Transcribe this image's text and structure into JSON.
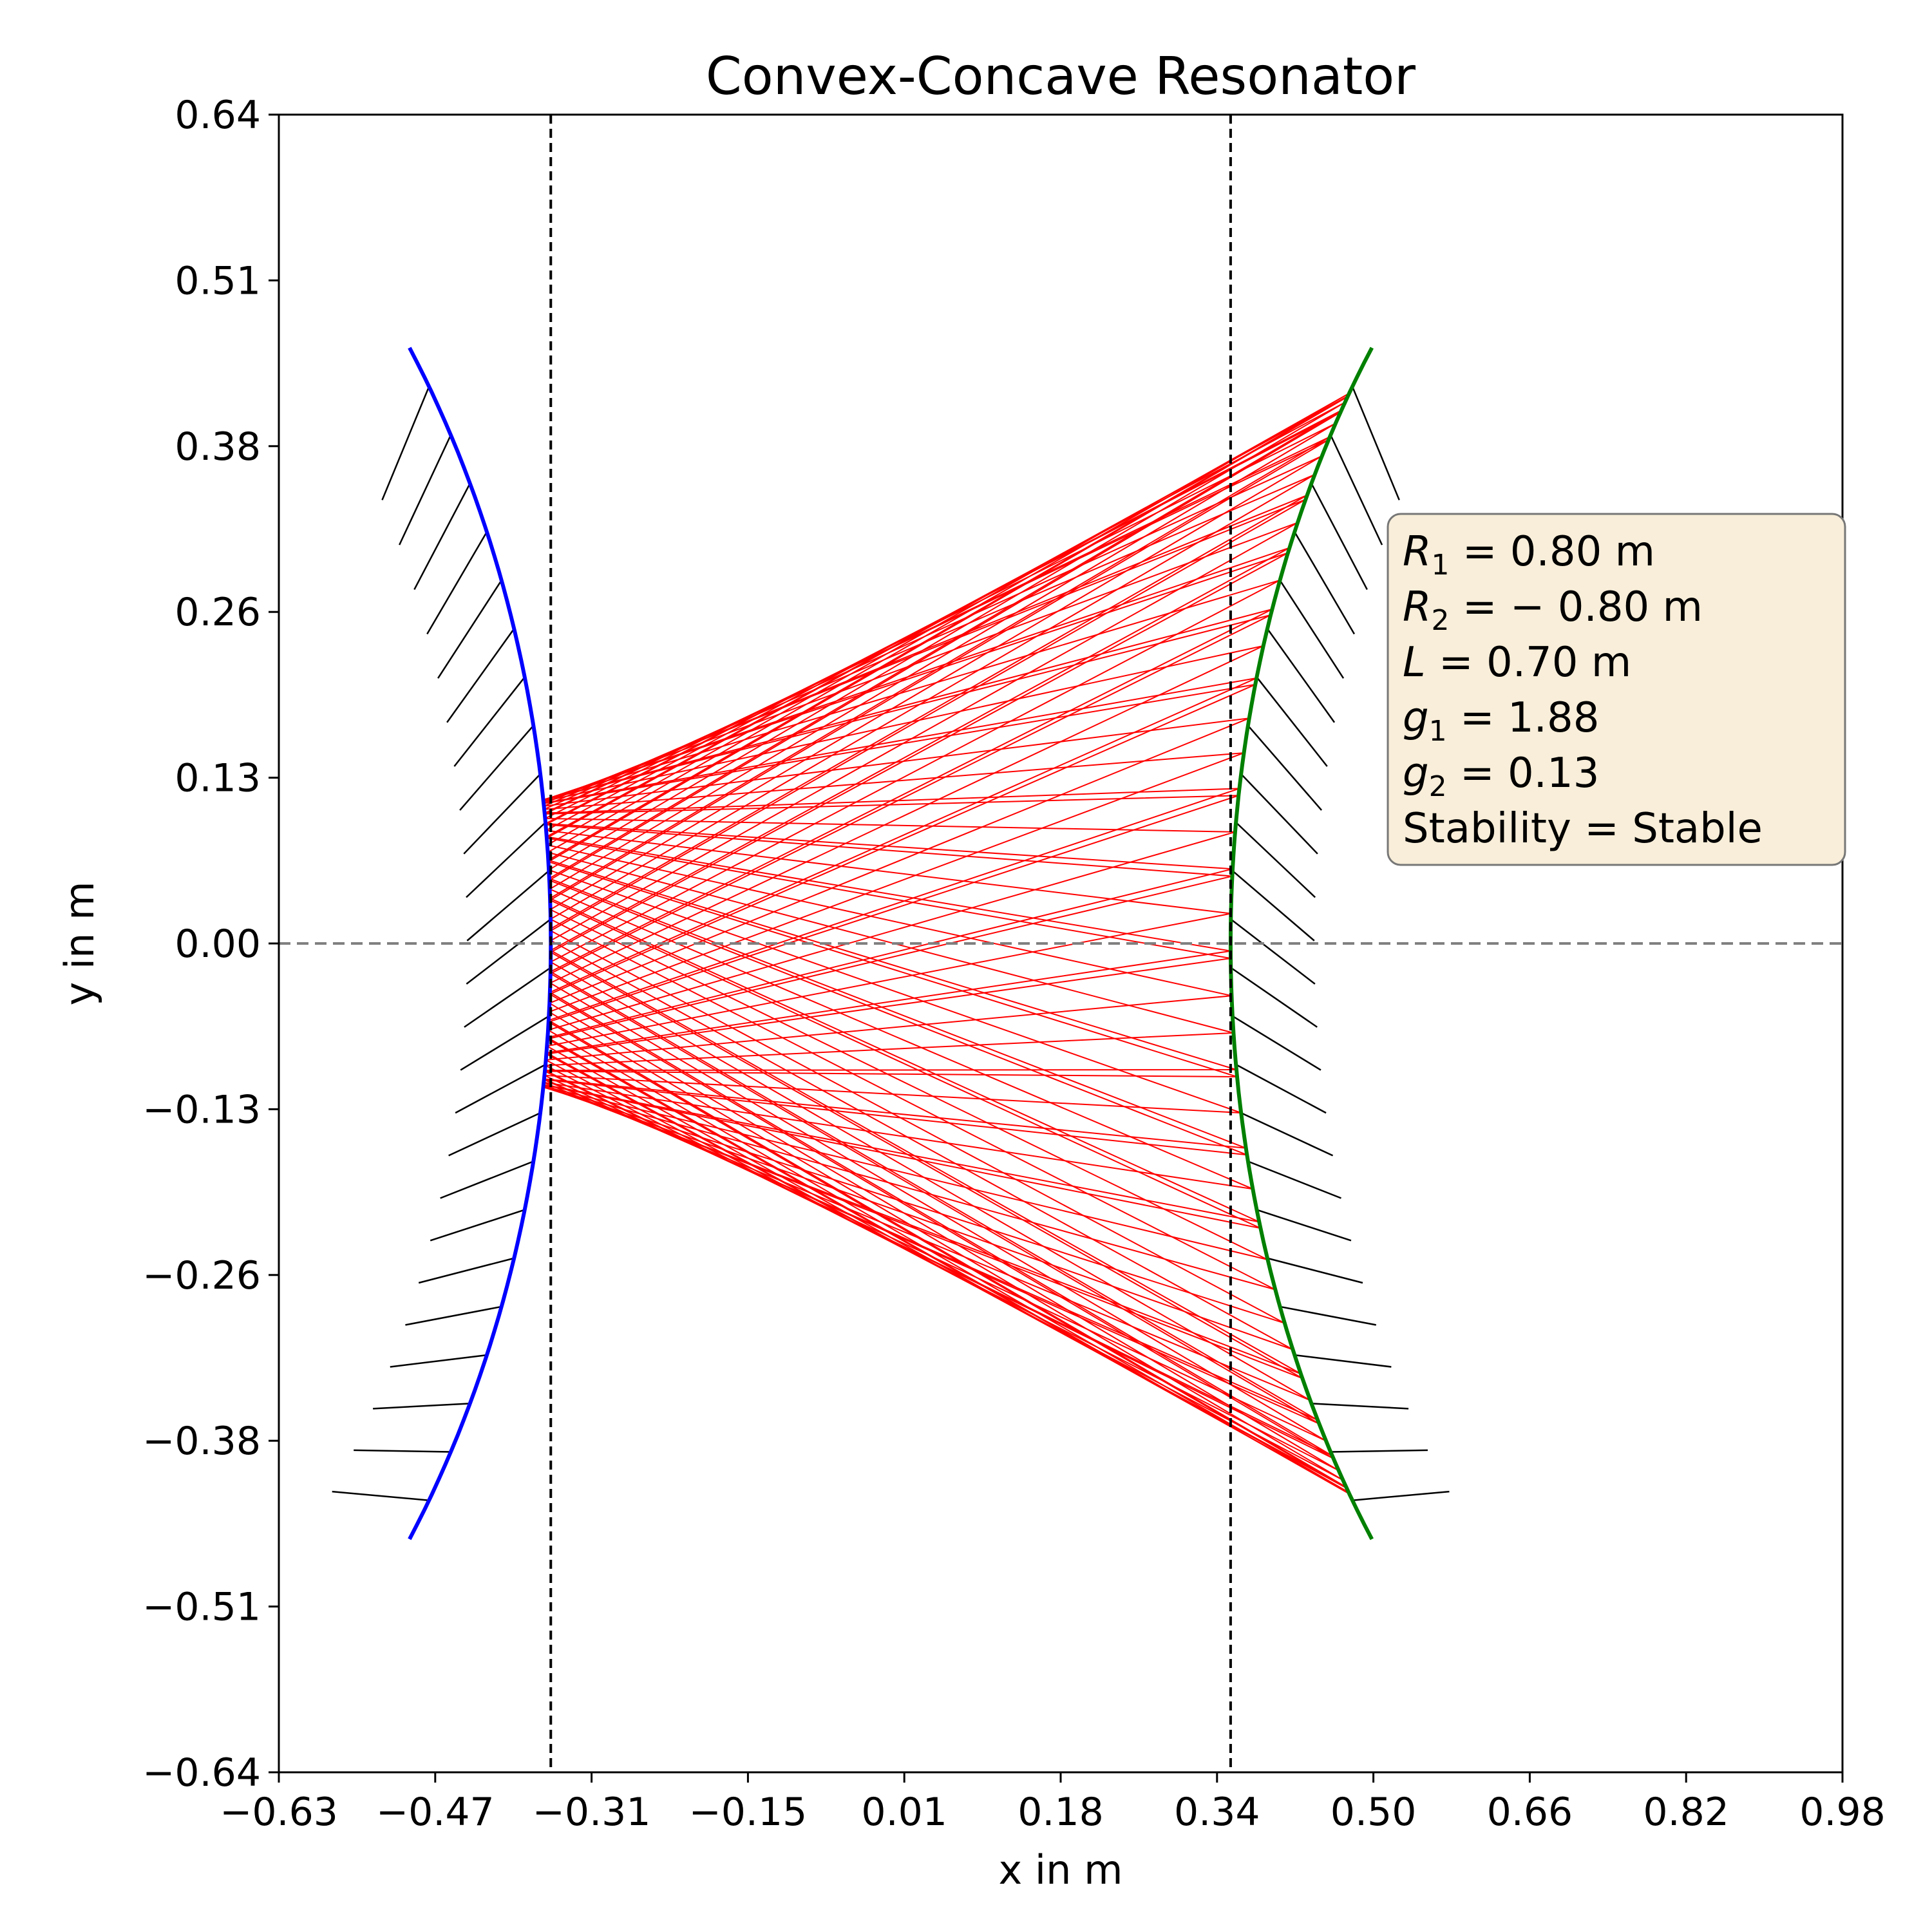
{
  "chart_data": {
    "type": "line",
    "title": "Convex-Concave Resonator",
    "xlabel": "x in m",
    "ylabel": "y in m",
    "xlim": [
      -0.63,
      0.98
    ],
    "ylim": [
      -0.64,
      0.64
    ],
    "xticks": [
      "−0.63",
      "−0.47",
      "−0.31",
      "−0.15",
      "0.01",
      "0.18",
      "0.34",
      "0.50",
      "0.66",
      "0.82",
      "0.98"
    ],
    "yticks": [
      "0.64",
      "0.51",
      "0.38",
      "0.26",
      "0.13",
      "0.00",
      "−0.13",
      "−0.26",
      "−0.38",
      "−0.51",
      "−0.64"
    ],
    "grid": false,
    "reference_lines": {
      "optical_axis_y": 0.0,
      "mirror1_vertex_x": -0.35,
      "mirror2_vertex_x": 0.35
    },
    "mirrors": [
      {
        "vertex_x": -0.35,
        "radius": 0.8,
        "half_aperture": 0.46,
        "color": "#0000ff",
        "hatch_color": "#000000"
      },
      {
        "vertex_x": 0.35,
        "radius": -0.8,
        "half_aperture": 0.46,
        "color": "#008000",
        "hatch_color": "#000000"
      }
    ],
    "rays": {
      "color": "#ff0000",
      "y_extent_mirror1": [
        -0.111,
        0.111
      ],
      "y_extent_mirror2": [
        -0.425,
        0.425
      ],
      "bounces": 60
    },
    "annotation": {
      "lines": [
        {
          "sym": "R",
          "sub": "1",
          "rest": " = 0.80 m"
        },
        {
          "sym": "R",
          "sub": "2",
          "rest": " = − 0.80 m"
        },
        {
          "sym": "L",
          "sub": "",
          "rest": " = 0.70 m"
        },
        {
          "sym": "g",
          "sub": "1",
          "rest": " = 1.88"
        },
        {
          "sym": "g",
          "sub": "2",
          "rest": " = 0.13"
        },
        {
          "sym": "",
          "sub": "",
          "rest": "Stability = Stable"
        }
      ],
      "box_color": "#f8eed9",
      "placement": "right"
    }
  }
}
